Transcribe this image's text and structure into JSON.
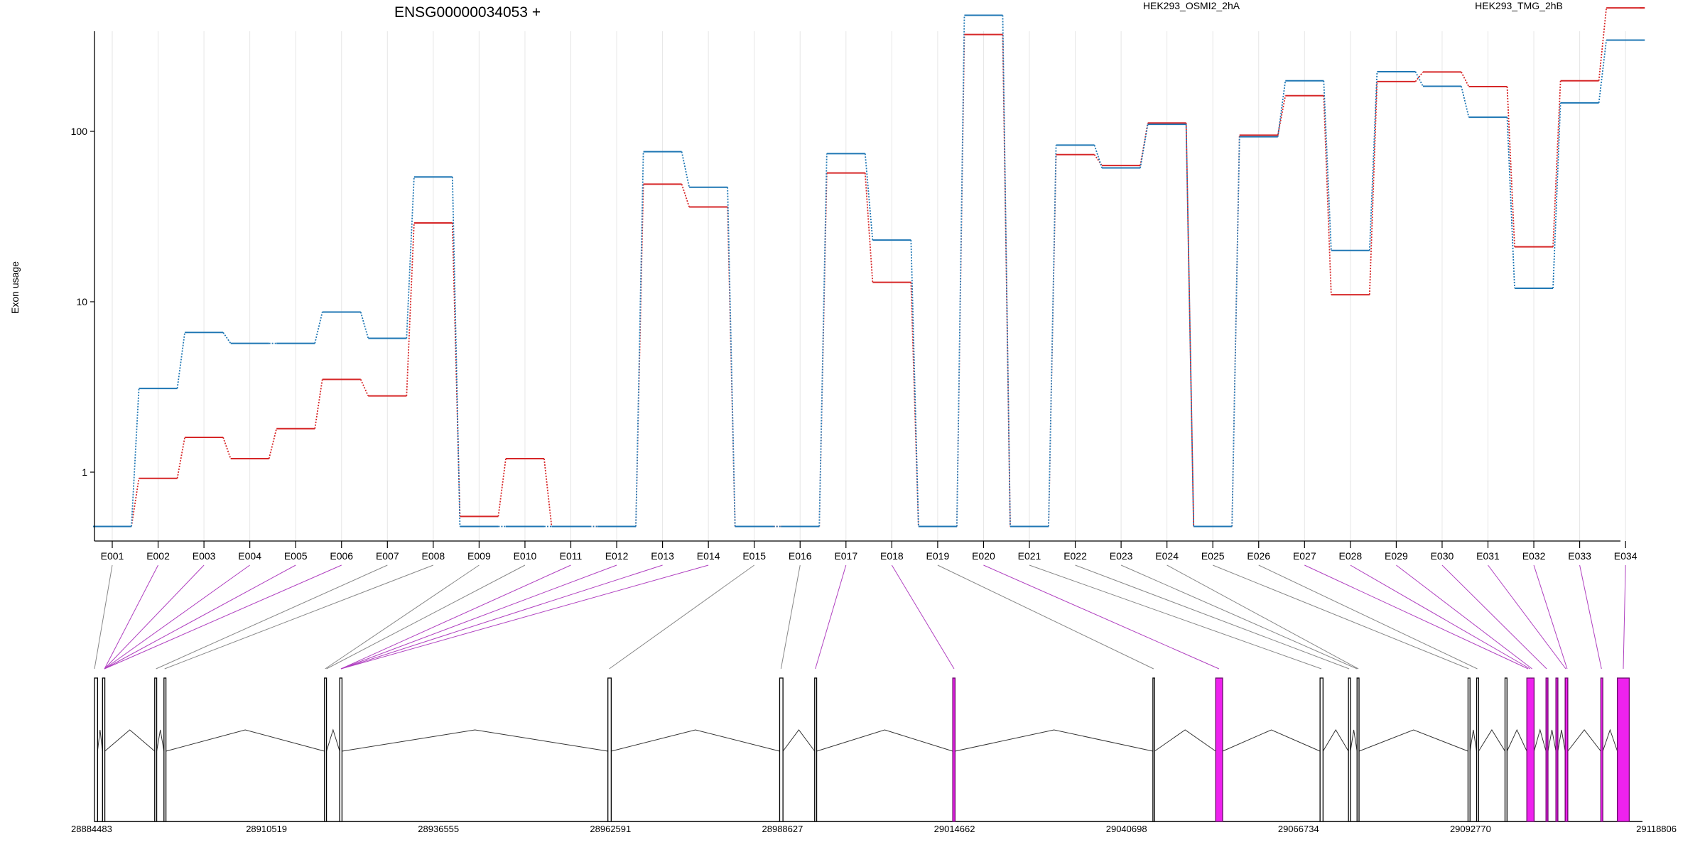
{
  "chart_data": {
    "type": "line",
    "title": "ENSG00000034053 +",
    "ylabel": "Exon usage",
    "xlabel": "",
    "y_scale": "log",
    "y_ticks": [
      1,
      10,
      100
    ],
    "y_tick_labels": [
      "1",
      "10",
      "100"
    ],
    "ylim": [
      0.5,
      700
    ],
    "grid": true,
    "legend_placement": "top",
    "categories": [
      "E001",
      "E002",
      "E003",
      "E004",
      "E005",
      "E006",
      "E007",
      "E008",
      "E009",
      "E010",
      "E011",
      "E012",
      "E013",
      "E014",
      "E015",
      "E016",
      "E017",
      "E018",
      "E019",
      "E020",
      "E021",
      "E022",
      "E023",
      "E024",
      "E025",
      "E026",
      "E027",
      "E028",
      "E029",
      "E030",
      "E031",
      "E032",
      "E033",
      "E034"
    ],
    "series": [
      {
        "name": "HEK293_OSMI2_2hA",
        "color": "#d62728",
        "values": [
          0.48,
          0.92,
          1.6,
          1.2,
          1.8,
          3.5,
          2.8,
          29,
          0.55,
          1.2,
          0.48,
          0.48,
          49,
          36,
          0.48,
          0.48,
          57,
          13,
          0.48,
          370,
          0.48,
          73,
          63,
          112,
          0.48,
          95,
          162,
          11,
          196,
          223,
          183,
          21,
          198,
          530
        ]
      },
      {
        "name": "HEK293_TMG_2hB",
        "color": "#1f77b4",
        "values": [
          0.48,
          3.1,
          6.6,
          5.7,
          5.7,
          8.7,
          6.1,
          54,
          0.48,
          0.48,
          0.48,
          0.48,
          76,
          47,
          0.48,
          0.48,
          74,
          23,
          0.48,
          480,
          0.48,
          83,
          61,
          110,
          0.48,
          93,
          198,
          20,
          224,
          184,
          121,
          12,
          147,
          343
        ]
      }
    ],
    "gene_model": {
      "coord_labels": [
        "28884483",
        "28910519",
        "28936555",
        "28962591",
        "28988627",
        "29014662",
        "29040698",
        "29066734",
        "29092770",
        "29118806"
      ],
      "coord_range": [
        28884483,
        29118806
      ],
      "exons": [
        {
          "start": 28884483,
          "end": 28884950,
          "highlight": false
        },
        {
          "start": 28885700,
          "end": 28886050,
          "highlight": false
        },
        {
          "start": 28893600,
          "end": 28893900,
          "highlight": false
        },
        {
          "start": 28895000,
          "end": 28895300,
          "highlight": false
        },
        {
          "start": 28919300,
          "end": 28919600,
          "highlight": false
        },
        {
          "start": 28921600,
          "end": 28921950,
          "highlight": false
        },
        {
          "start": 28962200,
          "end": 28962700,
          "highlight": false
        },
        {
          "start": 28988200,
          "end": 28988700,
          "highlight": false
        },
        {
          "start": 28993500,
          "end": 28993800,
          "highlight": false
        },
        {
          "start": 29014400,
          "end": 29014750,
          "highlight": true
        },
        {
          "start": 29044700,
          "end": 29044950,
          "highlight": false
        },
        {
          "start": 29054200,
          "end": 29055250,
          "highlight": true
        },
        {
          "start": 29070000,
          "end": 29070450,
          "highlight": false
        },
        {
          "start": 29074300,
          "end": 29074600,
          "highlight": false
        },
        {
          "start": 29075600,
          "end": 29075900,
          "highlight": false
        },
        {
          "start": 29092400,
          "end": 29092700,
          "highlight": false
        },
        {
          "start": 29093700,
          "end": 29094000,
          "highlight": false
        },
        {
          "start": 29098000,
          "end": 29098300,
          "highlight": false
        },
        {
          "start": 29101300,
          "end": 29102400,
          "highlight": true
        },
        {
          "start": 29104200,
          "end": 29104500,
          "highlight": true
        },
        {
          "start": 29105700,
          "end": 29106000,
          "highlight": true
        },
        {
          "start": 29107100,
          "end": 29107500,
          "highlight": true
        },
        {
          "start": 29112500,
          "end": 29112800,
          "highlight": true
        },
        {
          "start": 29115000,
          "end": 29116800,
          "highlight": true
        }
      ],
      "links": [
        {
          "exon": "E001",
          "pos": 28884483,
          "highlight": false
        },
        {
          "exon": "E002",
          "pos": 28886000,
          "highlight": true
        },
        {
          "exon": "E003",
          "pos": 28886000,
          "highlight": true
        },
        {
          "exon": "E004",
          "pos": 28886000,
          "highlight": true
        },
        {
          "exon": "E005",
          "pos": 28886000,
          "highlight": true
        },
        {
          "exon": "E006",
          "pos": 28886000,
          "highlight": true
        },
        {
          "exon": "E007",
          "pos": 28893800,
          "highlight": false
        },
        {
          "exon": "E008",
          "pos": 28895100,
          "highlight": false
        },
        {
          "exon": "E009",
          "pos": 28919400,
          "highlight": false
        },
        {
          "exon": "E010",
          "pos": 28919600,
          "highlight": false
        },
        {
          "exon": "E011",
          "pos": 28921800,
          "highlight": true
        },
        {
          "exon": "E012",
          "pos": 28921800,
          "highlight": true
        },
        {
          "exon": "E013",
          "pos": 28921800,
          "highlight": true
        },
        {
          "exon": "E014",
          "pos": 28921800,
          "highlight": true
        },
        {
          "exon": "E015",
          "pos": 28962400,
          "highlight": false
        },
        {
          "exon": "E016",
          "pos": 28988400,
          "highlight": false
        },
        {
          "exon": "E017",
          "pos": 28993600,
          "highlight": true
        },
        {
          "exon": "E018",
          "pos": 29014600,
          "highlight": true
        },
        {
          "exon": "E019",
          "pos": 29044800,
          "highlight": false
        },
        {
          "exon": "E020",
          "pos": 29054700,
          "highlight": true
        },
        {
          "exon": "E021",
          "pos": 29070200,
          "highlight": false
        },
        {
          "exon": "E022",
          "pos": 29074400,
          "highlight": false
        },
        {
          "exon": "E023",
          "pos": 29075600,
          "highlight": false
        },
        {
          "exon": "E024",
          "pos": 29075800,
          "highlight": false
        },
        {
          "exon": "E025",
          "pos": 29092500,
          "highlight": false
        },
        {
          "exon": "E026",
          "pos": 29093800,
          "highlight": false
        },
        {
          "exon": "E027",
          "pos": 29101500,
          "highlight": true
        },
        {
          "exon": "E028",
          "pos": 29101800,
          "highlight": true
        },
        {
          "exon": "E029",
          "pos": 29102100,
          "highlight": true
        },
        {
          "exon": "E030",
          "pos": 29104300,
          "highlight": true
        },
        {
          "exon": "E031",
          "pos": 29107200,
          "highlight": true
        },
        {
          "exon": "E032",
          "pos": 29107400,
          "highlight": true
        },
        {
          "exon": "E033",
          "pos": 29112600,
          "highlight": true
        },
        {
          "exon": "E034",
          "pos": 29115900,
          "highlight": true
        }
      ]
    }
  },
  "colors": {
    "highlight_fill": "#ee22ee",
    "highlight_border": "#6a0a6a",
    "link_highlight": "#b040c0",
    "link_normal": "#888888",
    "grid": "#e6e6e6"
  }
}
